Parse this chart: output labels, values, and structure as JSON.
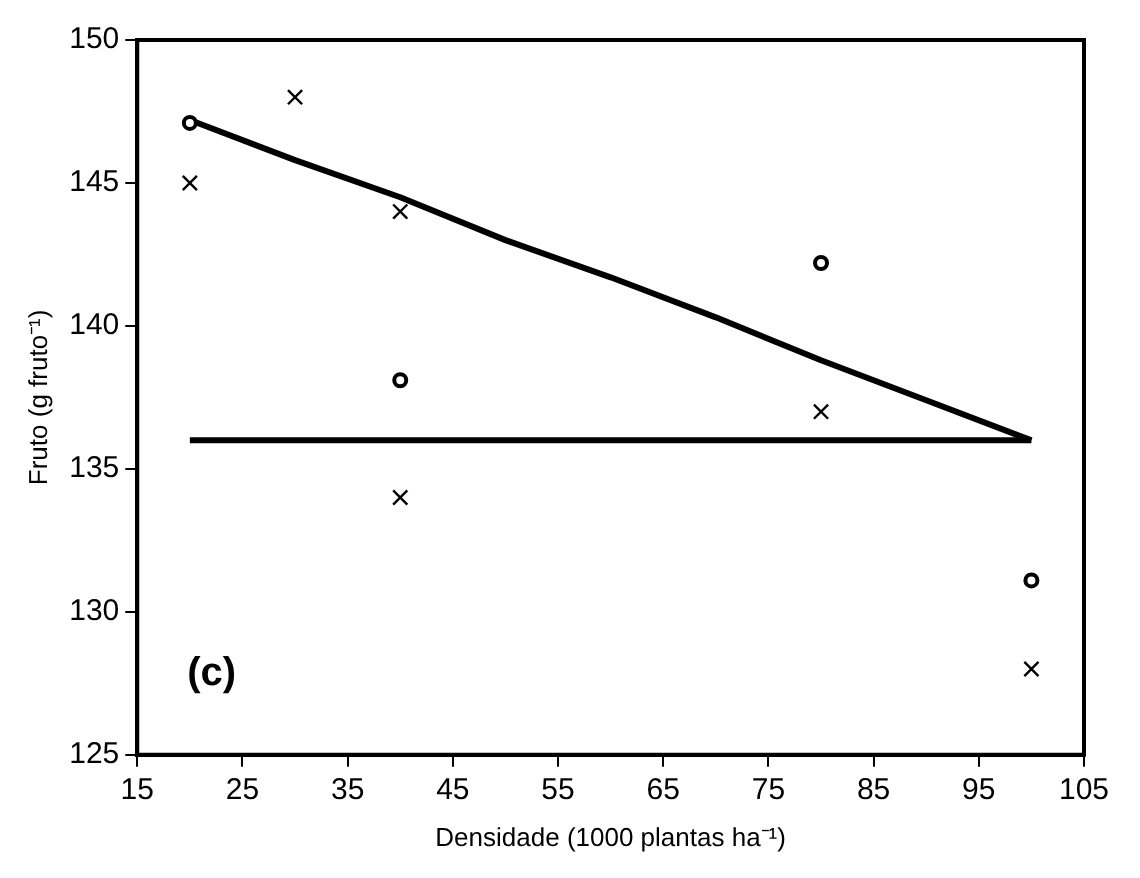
{
  "chart_data": {
    "type": "scatter",
    "xlabel": "Densidade (1000 plantas ha⁻¹)",
    "ylabel": "Fruto (g fruto⁻¹)",
    "annotations": [
      "(c)"
    ],
    "xlim": [
      15,
      105
    ],
    "xticks": [
      15,
      25,
      35,
      45,
      55,
      65,
      75,
      85,
      95,
      105
    ],
    "ylim": [
      125,
      150
    ],
    "yticks": [
      125,
      130,
      135,
      140,
      145,
      150
    ],
    "grid": false,
    "legend": false,
    "series": [
      {
        "marker": "circle",
        "color": "#000000",
        "x": [
          20,
          40,
          80,
          100
        ],
        "values": [
          147.1,
          138.1,
          142.2,
          131.1
        ]
      },
      {
        "marker": "cross",
        "color": "#000000",
        "x": [
          20,
          30,
          40,
          40,
          80,
          100
        ],
        "values": [
          145,
          148,
          144,
          134,
          137,
          128
        ]
      },
      {
        "type": "line",
        "marker": "none",
        "color": "#000000",
        "x": [
          20,
          30,
          40,
          50,
          60,
          70,
          80,
          90,
          100
        ],
        "values": [
          147.2,
          145.8,
          144.5,
          143.0,
          141.7,
          140.3,
          138.8,
          137.4,
          136
        ]
      },
      {
        "type": "line",
        "marker": "none",
        "color": "#000000",
        "x": [
          20,
          100
        ],
        "values": [
          136,
          136
        ]
      }
    ]
  }
}
